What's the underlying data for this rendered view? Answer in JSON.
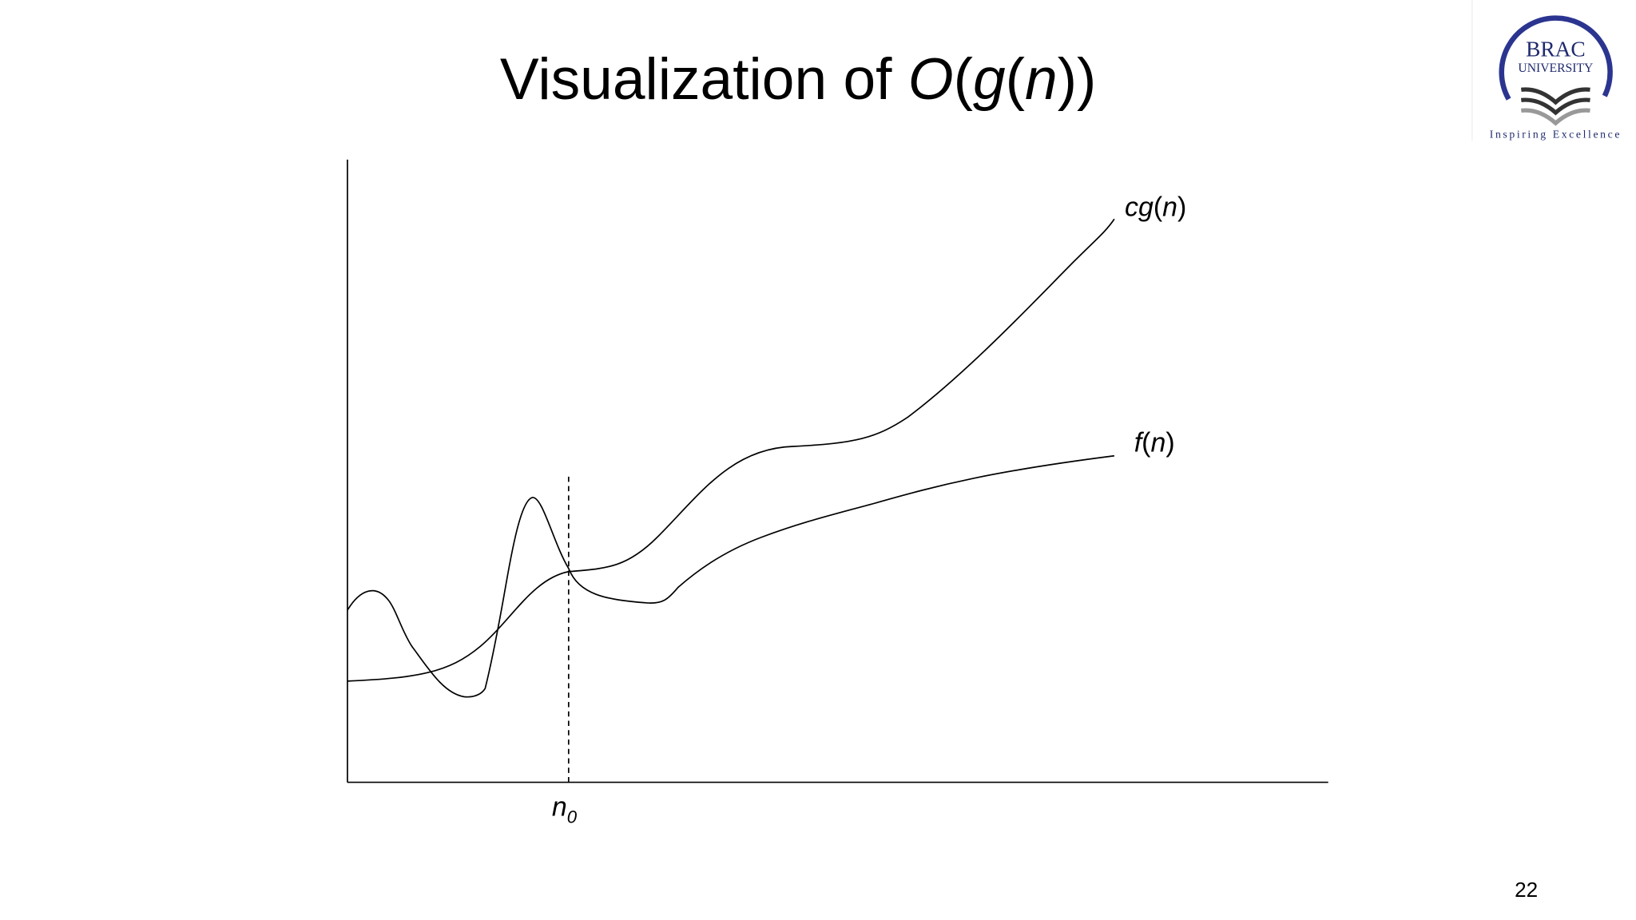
{
  "title": {
    "parts": [
      "Visualization of ",
      "O",
      "(",
      "g",
      "(",
      "n",
      "))"
    ]
  },
  "labels": {
    "cg": [
      "cg",
      "(",
      "n",
      ")"
    ],
    "f": [
      "f",
      "(",
      "n",
      ")"
    ],
    "n0": [
      "n",
      "0"
    ]
  },
  "logo": {
    "name": "BRAC",
    "subname": "UNIVERSITY",
    "motto": "Inspiring Excellence"
  },
  "page_number": "22"
}
